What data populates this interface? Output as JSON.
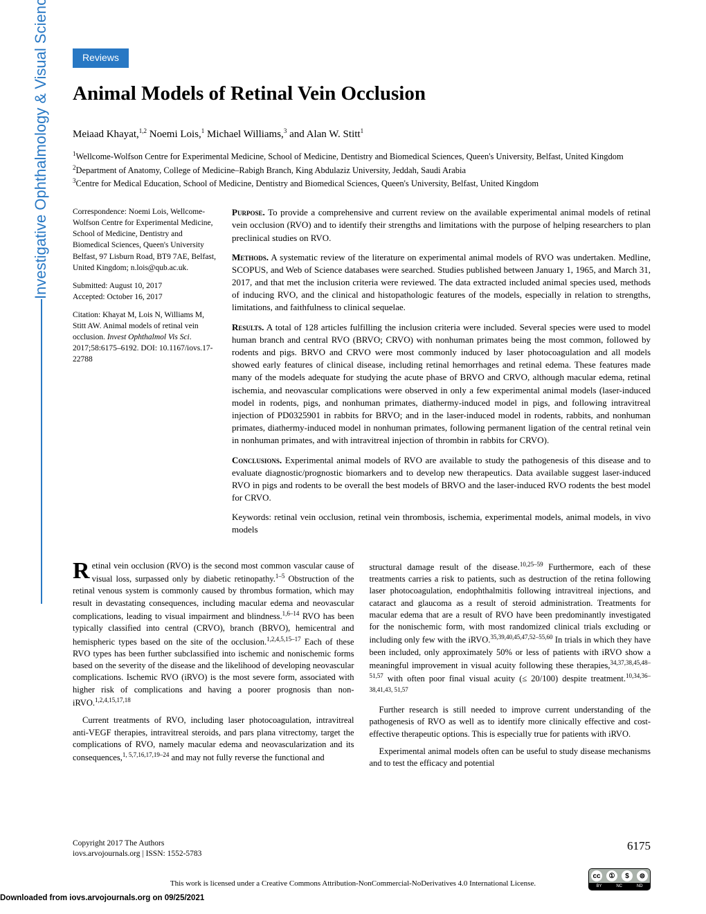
{
  "tag": "Reviews",
  "title": "Animal Models of Retinal Vein Occlusion",
  "authors_html": "Meiaad Khayat,<sup>1,2</sup> Noemi Lois,<sup>1</sup> Michael Williams,<sup>3</sup> and Alan W. Stitt<sup>1</sup>",
  "affiliations": [
    "<sup>1</sup>Wellcome-Wolfson Centre for Experimental Medicine, School of Medicine, Dentistry and Biomedical Sciences, Queen's University, Belfast, United Kingdom",
    "<sup>2</sup>Department of Anatomy, College of Medicine–Rabigh Branch, King Abdulaziz University, Jeddah, Saudi Arabia",
    "<sup>3</sup>Centre for Medical Education, School of Medicine, Dentistry and Biomedical Sciences, Queen's University, Belfast, United Kingdom"
  ],
  "sidebar": {
    "correspondence": "Correspondence: Noemi Lois, Wellcome-Wolfson Centre for Experimental Medicine, School of Medicine, Dentistry and Biomedical Sciences, Queen's University Belfast, 97 Lisburn Road, BT9 7AE, Belfast, United Kingdom; n.lois@qub.ac.uk.",
    "submitted": "Submitted: August 10, 2017",
    "accepted": "Accepted: October 16, 2017",
    "citation": "Citation: Khayat M, Lois N, Williams M, Stitt AW. Animal models of retinal vein occlusion. <i>Invest Ophthalmol Vis Sci</i>. 2017;58:6175–6192. DOI: 10.1167/iovs.17-22788"
  },
  "abstract": {
    "purpose": "To provide a comprehensive and current review on the available experimental animal models of retinal vein occlusion (RVO) and to identify their strengths and limitations with the purpose of helping researchers to plan preclinical studies on RVO.",
    "methods": "A systematic review of the literature on experimental animal models of RVO was undertaken. Medline, SCOPUS, and Web of Science databases were searched. Studies published between January 1, 1965, and March 31, 2017, and that met the inclusion criteria were reviewed. The data extracted included animal species used, methods of inducing RVO, and the clinical and histopathologic features of the models, especially in relation to strengths, limitations, and faithfulness to clinical sequelae.",
    "results": "A total of 128 articles fulfilling the inclusion criteria were included. Several species were used to model human branch and central RVO (BRVO; CRVO) with nonhuman primates being the most common, followed by rodents and pigs. BRVO and CRVO were most commonly induced by laser photocoagulation and all models showed early features of clinical disease, including retinal hemorrhages and retinal edema. These features made many of the models adequate for studying the acute phase of BRVO and CRVO, although macular edema, retinal ischemia, and neovascular complications were observed in only a few experimental animal models (laser-induced model in rodents, pigs, and nonhuman primates, diathermy-induced model in pigs, and following intravitreal injection of PD0325901 in rabbits for BRVO; and in the laser-induced model in rodents, rabbits, and nonhuman primates, diathermy-induced model in nonhuman primates, following permanent ligation of the central retinal vein in nonhuman primates, and with intravitreal injection of thrombin in rabbits for CRVO).",
    "conclusions": "Experimental animal models of RVO are available to study the pathogenesis of this disease and to evaluate diagnostic/prognostic biomarkers and to develop new therapeutics. Data available suggest laser-induced RVO in pigs and rodents to be overall the best models of BRVO and the laser-induced RVO rodents the best model for CRVO.",
    "keywords": "Keywords: retinal vein occlusion, retinal vein thrombosis, ischemia, experimental models, animal models, in vivo models"
  },
  "body": {
    "col1": [
      "etinal vein occlusion (RVO) is the second most common vascular cause of visual loss, surpassed only by diabetic retinopathy.<sup>1–5</sup> Obstruction of the retinal venous system is commonly caused by thrombus formation, which may result in devastating consequences, including macular edema and neovascular complications, leading to visual impairment and blindness.<sup>1,6–14</sup> RVO has been typically classified into central (CRVO), branch (BRVO), hemicentral and hemispheric types based on the site of the occlusion.<sup>1,2,4,5,15–17</sup> Each of these RVO types has been further subclassified into ischemic and nonischemic forms based on the severity of the disease and the likelihood of developing neovascular complications. Ischemic RVO (iRVO) is the most severe form, associated with higher risk of complications and having a poorer prognosis than non-iRVO.<sup>1,2,4,15,17,18</sup>",
      "Current treatments of RVO, including laser photocoagulation, intravitreal anti-VEGF therapies, intravitreal steroids, and pars plana vitrectomy, target the complications of RVO, namely macular edema and neovascularization and its consequences,<sup>1, 5,7,16,17,19–24</sup> and may not fully reverse the functional and"
    ],
    "col2": [
      "structural damage result of the disease.<sup>10,25–59</sup> Furthermore, each of these treatments carries a risk to patients, such as destruction of the retina following laser photocoagulation, endophthalmitis following intravitreal injections, and cataract and glaucoma as a result of steroid administration. Treatments for macular edema that are a result of RVO have been predominantly investigated for the nonischemic form, with most randomized clinical trials excluding or including only few with the iRVO.<sup>35,39,40,45,47,52–55,60</sup> In trials in which they have been included, only approximately 50% or less of patients with iRVO show a meaningful improvement in visual acuity following these therapies,<sup>34,37,38,45,48–51,57</sup> with often poor final visual acuity (≤ 20/100) despite treatment.<sup>10,34,36–38,41,43, 51,57</sup>",
      "Further research is still needed to improve current understanding of the pathogenesis of RVO as well as to identify more clinically effective and cost-effective therapeutic options. This is especially true for patients with iRVO.",
      "Experimental animal models often can be useful to study disease mechanisms and to test the efficacy and potential"
    ]
  },
  "footer": {
    "copyright": "Copyright 2017 The Authors",
    "journal_line": "iovs.arvojournals.org | ISSN: 1552-5783",
    "page": "6175",
    "license": "This work is licensed under a Creative Commons Attribution-NonCommercial-NoDerivatives 4.0 International License.",
    "download": "Downloaded from iovs.arvojournals.org on 09/25/2021"
  },
  "journal_name": "Investigative Ophthalmology & Visual Science",
  "cc": {
    "labels": [
      "BY",
      "NC",
      "ND"
    ]
  },
  "colors": {
    "accent": "#2878c4",
    "text": "#000000",
    "bg": "#ffffff"
  }
}
